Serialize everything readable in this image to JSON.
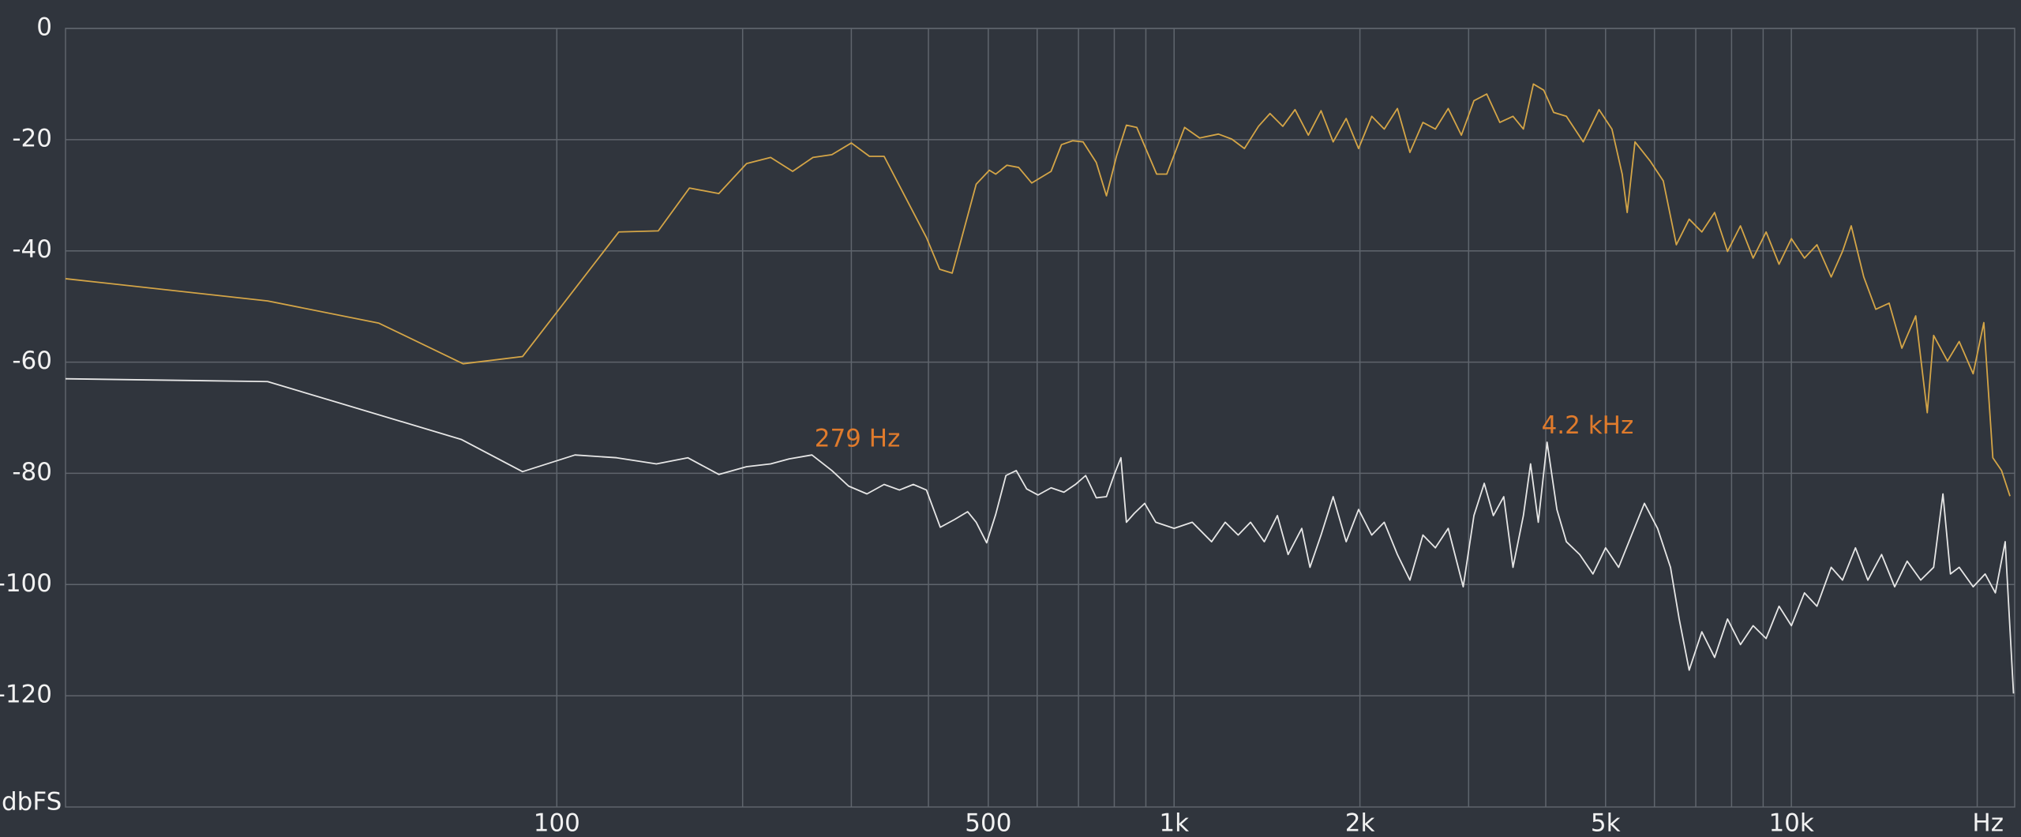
{
  "chart_data": {
    "type": "line",
    "xscale": "log",
    "grid": true,
    "ylabel": "dbFS",
    "xlabel": "Hz",
    "xlim": [
      16,
      23000
    ],
    "ylim": [
      -140,
      0
    ],
    "yticks": [
      0,
      -20,
      -40,
      -60,
      -80,
      -100,
      -120
    ],
    "xticks": [
      100,
      500,
      {
        "value": 1000,
        "label": "1k"
      },
      {
        "value": 2000,
        "label": "2k"
      },
      {
        "value": 5000,
        "label": "5k"
      },
      {
        "value": 10000,
        "label": "10k"
      }
    ],
    "xminor_ticks": [
      200,
      300,
      400,
      600,
      700,
      800,
      900,
      3000,
      4000,
      6000,
      7000,
      8000,
      9000,
      20000
    ],
    "annotations": [
      {
        "text": "279 Hz",
        "x": 279,
        "y": -74,
        "color": "#e07b2c"
      },
      {
        "text": "4.2  kHz",
        "x": 4200,
        "y": -71.6,
        "color": "#e07b2c"
      }
    ],
    "series": [
      {
        "color": "#d4a547",
        "x": [
          16,
          34,
          51.5,
          70.5,
          88,
          126,
          146,
          164,
          183,
          203,
          222,
          241,
          260,
          279,
          300,
          321,
          339,
          397,
          417,
          437,
          478,
          502,
          514,
          536,
          560,
          588,
          632,
          657,
          685,
          712,
          748,
          777,
          807,
          837,
          870,
          937,
          973,
          1040,
          1100,
          1180,
          1240,
          1300,
          1370,
          1430,
          1500,
          1570,
          1650,
          1730,
          1810,
          1900,
          1990,
          2090,
          2190,
          2300,
          2410,
          2530,
          2650,
          2780,
          2920,
          3060,
          3210,
          3370,
          3540,
          3680,
          3820,
          3970,
          4120,
          4320,
          4600,
          4880,
          5120,
          5320,
          5420,
          5580,
          5910,
          6200,
          6510,
          6830,
          7160,
          7510,
          7880,
          8270,
          8670,
          9100,
          9550,
          10000,
          10500,
          11000,
          11600,
          12100,
          12500,
          13100,
          13700,
          14400,
          15100,
          15900,
          16600,
          17000,
          17900,
          18700,
          19700,
          20500,
          21200,
          21900,
          22600
        ],
        "values": [
          -45,
          -49,
          -53,
          -60.3,
          -59,
          -36.6,
          -36.4,
          -28.7,
          -29.7,
          -24.3,
          -23.2,
          -25.7,
          -23.2,
          -22.7,
          -20.6,
          -23,
          -23,
          -37.6,
          -43.3,
          -44,
          -28,
          -25.5,
          -26.2,
          -24.6,
          -25,
          -27.8,
          -25.7,
          -20.9,
          -20.2,
          -20.4,
          -24.1,
          -30.1,
          -22.9,
          -17.4,
          -17.8,
          -26.2,
          -26.2,
          -17.8,
          -19.7,
          -19,
          -19.9,
          -21.6,
          -17.6,
          -15.3,
          -17.6,
          -14.6,
          -19.2,
          -14.8,
          -20.4,
          -16.2,
          -21.6,
          -15.8,
          -18.1,
          -14.4,
          -22.3,
          -16.9,
          -18.1,
          -14.4,
          -19.2,
          -13,
          -11.8,
          -16.9,
          -15.8,
          -18.1,
          -10,
          -11.1,
          -15.1,
          -15.8,
          -20.4,
          -14.6,
          -18.1,
          -26.2,
          -33.1,
          -20.4,
          -23.9,
          -27.4,
          -38.9,
          -34.3,
          -36.6,
          -33.1,
          -40.1,
          -35.5,
          -41.3,
          -36.6,
          -42.4,
          -37.8,
          -41.3,
          -38.9,
          -44.7,
          -40.1,
          -35.5,
          -44.7,
          -50.5,
          -49.4,
          -57.5,
          -51.7,
          -69.1,
          -55.2,
          -59.8,
          -56.3,
          -62.1,
          -52.9,
          -77.2,
          -79.5,
          -84.1
        ]
      },
      {
        "color": "#e6e6e6",
        "x": [
          16,
          34,
          70,
          88,
          107,
          125,
          145,
          163,
          183,
          203,
          222,
          238,
          259,
          279,
          297,
          318,
          339,
          359,
          378,
          397,
          418,
          441,
          463,
          478,
          497,
          514,
          534,
          555,
          577,
          602,
          632,
          663,
          692,
          719,
          748,
          777,
          800,
          820,
          837,
          862,
          896,
          934,
          1000,
          1070,
          1150,
          1210,
          1270,
          1330,
          1400,
          1470,
          1530,
          1610,
          1660,
          1730,
          1810,
          1900,
          1990,
          2090,
          2190,
          2300,
          2410,
          2530,
          2650,
          2780,
          2940,
          3060,
          3180,
          3290,
          3420,
          3540,
          3680,
          3780,
          3890,
          4020,
          4170,
          4320,
          4540,
          4770,
          5000,
          5250,
          5510,
          5780,
          6070,
          6370,
          6580,
          6830,
          7160,
          7510,
          7880,
          8270,
          8670,
          9100,
          9550,
          10000,
          10500,
          11000,
          11600,
          12100,
          12700,
          13300,
          14000,
          14700,
          15400,
          16200,
          17000,
          17600,
          18100,
          18700,
          19700,
          20600,
          21400,
          22200,
          22900
        ],
        "values": [
          -63,
          -63.5,
          -73.9,
          -79.7,
          -76.7,
          -77.2,
          -78.3,
          -77.2,
          -80.2,
          -78.8,
          -78.3,
          -77.4,
          -76.7,
          -79.5,
          -82.3,
          -83.7,
          -82,
          -83,
          -82,
          -83,
          -89.7,
          -88.3,
          -86.9,
          -88.8,
          -92.5,
          -87.4,
          -80.4,
          -79.5,
          -82.8,
          -83.9,
          -82.6,
          -83.4,
          -82,
          -80.4,
          -84.4,
          -84.2,
          -80.2,
          -77.2,
          -88.8,
          -87.2,
          -85.4,
          -88.8,
          -89.9,
          -88.8,
          -92.3,
          -88.8,
          -91.1,
          -88.8,
          -92.3,
          -87.6,
          -94.6,
          -89.9,
          -96.9,
          -91.1,
          -84.2,
          -92.3,
          -86.5,
          -91.1,
          -88.8,
          -94.6,
          -99.2,
          -91.1,
          -93.4,
          -89.9,
          -100.4,
          -87.6,
          -81.8,
          -87.6,
          -84.2,
          -96.9,
          -87.6,
          -78.3,
          -88.8,
          -74.4,
          -86.5,
          -92.3,
          -94.6,
          -98.1,
          -93.4,
          -96.9,
          -91.1,
          -85.4,
          -89.9,
          -96.9,
          -106.2,
          -115.4,
          -108.5,
          -113.1,
          -106.2,
          -110.8,
          -107.4,
          -109.7,
          -103.9,
          -107.4,
          -101.5,
          -103.9,
          -96.9,
          -99.2,
          -93.4,
          -99.2,
          -94.6,
          -100.4,
          -95.8,
          -99.2,
          -96.9,
          -83.7,
          -98.1,
          -96.9,
          -100.4,
          -98.1,
          -101.5,
          -92.3,
          -119.6
        ]
      }
    ]
  }
}
